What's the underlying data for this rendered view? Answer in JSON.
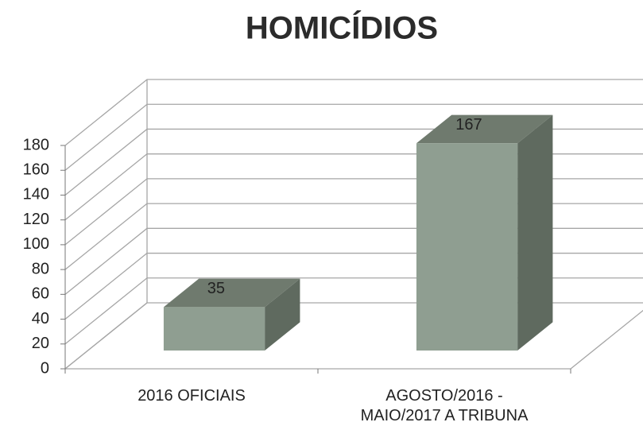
{
  "chart_data": {
    "type": "bar3d",
    "title": "HOMICÍDIOS",
    "categories": [
      "2016 OFICIAIS",
      "AGOSTO/2016 - MAIO/2017 A TRIBUNA"
    ],
    "values": [
      35,
      167
    ],
    "color": "#8f9e91",
    "ylim": [
      0,
      180
    ],
    "yticks": [
      0,
      20,
      40,
      60,
      80,
      100,
      120,
      140,
      160,
      180
    ],
    "grid": true
  }
}
